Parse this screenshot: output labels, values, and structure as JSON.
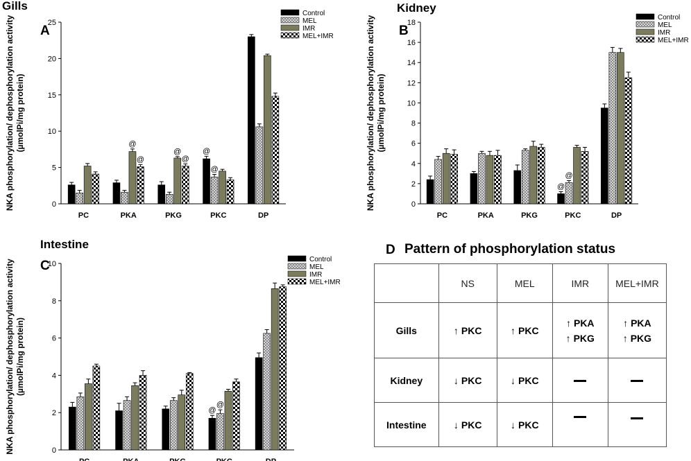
{
  "colors": {
    "control": "#000000",
    "mel": "#a9a9a9",
    "imr": "#7b7b5e",
    "melimr": "#ffffff"
  },
  "legend": [
    "Control",
    "MEL",
    "IMR",
    "MEL+IMR"
  ],
  "y_axis_label_line1": "NKA phosphorylation/ dephosphorylation activity",
  "y_axis_label_line2": "(µmolPi/mg protein)",
  "chart_data": [
    {
      "id": "A",
      "panel_letter": "A",
      "title": "Gills",
      "type": "bar",
      "categories": [
        "PC",
        "PKA",
        "PKG",
        "PKC",
        "DP"
      ],
      "ylim": [
        0,
        25
      ],
      "yticks": [
        0,
        5,
        10,
        15,
        20,
        25
      ],
      "series": [
        {
          "name": "Control",
          "values": [
            2.6,
            2.9,
            2.6,
            6.2,
            23.0
          ],
          "errors": [
            0.35,
            0.35,
            0.45,
            0.35,
            0.3
          ]
        },
        {
          "name": "MEL",
          "values": [
            1.5,
            1.6,
            1.3,
            3.7,
            10.6
          ],
          "errors": [
            0.35,
            0.25,
            0.3,
            0.35,
            0.4
          ]
        },
        {
          "name": "IMR",
          "values": [
            5.2,
            7.2,
            6.3,
            4.5,
            20.4
          ],
          "errors": [
            0.35,
            0.35,
            0.2,
            0.25,
            0.2
          ]
        },
        {
          "name": "MEL+IMR",
          "values": [
            4.1,
            5.1,
            5.2,
            3.3,
            14.8
          ],
          "errors": [
            0.3,
            0.3,
            0.3,
            0.3,
            0.45
          ]
        }
      ],
      "annotations": [
        {
          "category": "PKA",
          "series": "IMR",
          "text": "@"
        },
        {
          "category": "PKA",
          "series": "MEL+IMR",
          "text": "@"
        },
        {
          "category": "PKG",
          "series": "IMR",
          "text": "@"
        },
        {
          "category": "PKG",
          "series": "MEL+IMR",
          "text": "@"
        },
        {
          "category": "PKC",
          "series": "Control",
          "text": "@"
        },
        {
          "category": "PKC",
          "series": "MEL",
          "text": "@"
        }
      ]
    },
    {
      "id": "B",
      "panel_letter": "B",
      "title": "Kidney",
      "type": "bar",
      "categories": [
        "PC",
        "PKA",
        "PKG",
        "PKC",
        "DP"
      ],
      "ylim": [
        0,
        18
      ],
      "yticks": [
        0,
        2,
        4,
        6,
        8,
        10,
        12,
        14,
        16,
        18
      ],
      "series": [
        {
          "name": "Control",
          "values": [
            2.4,
            3.0,
            3.3,
            1.0,
            9.5
          ],
          "errors": [
            0.35,
            0.2,
            0.55,
            0.2,
            0.4
          ]
        },
        {
          "name": "MEL",
          "values": [
            4.4,
            5.0,
            5.3,
            2.1,
            15.0
          ],
          "errors": [
            0.3,
            0.2,
            0.15,
            0.2,
            0.5
          ]
        },
        {
          "name": "IMR",
          "values": [
            5.0,
            4.8,
            5.7,
            5.6,
            15.0
          ],
          "errors": [
            0.45,
            0.4,
            0.5,
            0.2,
            0.4
          ]
        },
        {
          "name": "MEL+IMR",
          "values": [
            4.9,
            4.8,
            5.6,
            5.2,
            12.5
          ],
          "errors": [
            0.45,
            0.5,
            0.3,
            0.4,
            0.55
          ]
        }
      ],
      "annotations": [
        {
          "category": "PKC",
          "series": "Control",
          "text": "@"
        },
        {
          "category": "PKC",
          "series": "MEL",
          "text": "@"
        }
      ]
    },
    {
      "id": "C",
      "panel_letter": "C",
      "title": "Intestine",
      "type": "bar",
      "categories": [
        "PC",
        "PKA",
        "PKG",
        "PKC",
        "DP"
      ],
      "ylim": [
        0,
        10
      ],
      "yticks": [
        0,
        2,
        4,
        6,
        8,
        10
      ],
      "series": [
        {
          "name": "Control",
          "values": [
            2.3,
            2.1,
            2.2,
            1.7,
            4.95
          ],
          "errors": [
            0.25,
            0.4,
            0.15,
            0.15,
            0.25
          ]
        },
        {
          "name": "MEL",
          "values": [
            2.85,
            2.65,
            2.65,
            1.95,
            6.25
          ],
          "errors": [
            0.2,
            0.2,
            0.15,
            0.2,
            0.2
          ]
        },
        {
          "name": "IMR",
          "values": [
            3.55,
            3.45,
            2.95,
            3.15,
            8.65
          ],
          "errors": [
            0.25,
            0.15,
            0.25,
            0.1,
            0.3
          ]
        },
        {
          "name": "MEL+IMR",
          "values": [
            4.5,
            4.0,
            4.1,
            3.65,
            8.75
          ],
          "errors": [
            0.1,
            0.25,
            0.05,
            0.15,
            0.1
          ]
        }
      ],
      "annotations": [
        {
          "category": "PKC",
          "series": "Control",
          "text": "@"
        },
        {
          "category": "PKC",
          "series": "MEL",
          "text": "@"
        }
      ]
    }
  ],
  "panelD": {
    "letter": "D",
    "title": "Pattern of phosphorylation status",
    "headers": [
      "",
      "NS",
      "MEL",
      "IMR",
      "MEL+IMR"
    ],
    "rows": [
      {
        "label": "Gills",
        "cells": [
          [
            {
              "dir": "up",
              "text": "PKC"
            }
          ],
          [
            {
              "dir": "up",
              "text": "PKC"
            }
          ],
          [
            {
              "dir": "up",
              "text": "PKA"
            },
            {
              "dir": "up",
              "text": "PKG"
            }
          ],
          [
            {
              "dir": "up",
              "text": "PKA"
            },
            {
              "dir": "up",
              "text": "PKG"
            }
          ]
        ]
      },
      {
        "label": "Kidney",
        "cells": [
          [
            {
              "dir": "down",
              "text": "PKC"
            }
          ],
          [
            {
              "dir": "down",
              "text": "PKC"
            }
          ],
          [],
          []
        ]
      },
      {
        "label": "Intestine",
        "cells": [
          [
            {
              "dir": "down",
              "text": "PKC"
            }
          ],
          [
            {
              "dir": "down",
              "text": "PKC"
            }
          ],
          [],
          []
        ]
      }
    ]
  }
}
